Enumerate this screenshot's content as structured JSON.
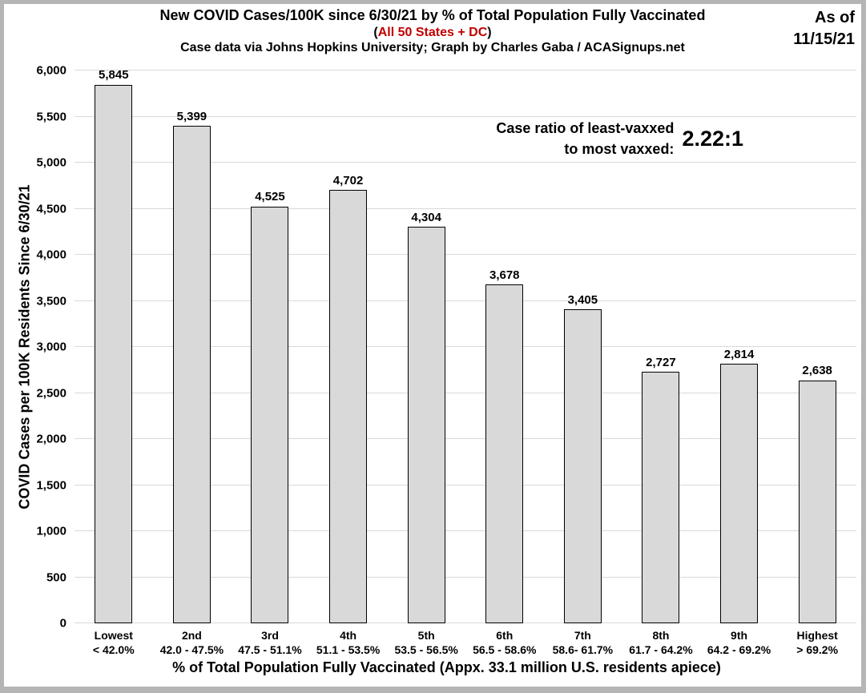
{
  "header": {
    "title": "New COVID Cases/100K since 6/30/21 by % of Total Population Fully Vaccinated",
    "subtitle_paren_open": "(",
    "subtitle_red": "All 50 States + DC",
    "subtitle_paren_close": ")",
    "credit": "Case data via Johns Hopkins University; Graph by Charles Gaba / ACASignups.net",
    "as_of_line1": "As of",
    "as_of_line2": "11/15/21"
  },
  "annotation": {
    "line1": "Case ratio of least-vaxxed",
    "line2": "to most vaxxed:",
    "ratio": "2.22:1"
  },
  "chart_data": {
    "type": "bar",
    "title": "New COVID Cases/100K since 6/30/21 by % of Total Population Fully Vaccinated (All 50 States + DC)",
    "xlabel": "% of Total Population Fully Vaccinated (Appx. 33.1 million U.S. residents apiece)",
    "ylabel": "COVID Cases per 100K Residents Since 6/30/21",
    "ylim": [
      0,
      6000
    ],
    "ytick_step": 500,
    "ytick_labels": [
      "0",
      "500",
      "1,000",
      "1,500",
      "2,000",
      "2,500",
      "3,000",
      "3,500",
      "4,000",
      "4,500",
      "5,000",
      "5,500",
      "6,000"
    ],
    "grid": true,
    "legend": false,
    "categories": [
      {
        "rank": "Lowest",
        "range": "< 42.0%"
      },
      {
        "rank": "2nd",
        "range": "42.0 - 47.5%"
      },
      {
        "rank": "3rd",
        "range": "47.5 - 51.1%"
      },
      {
        "rank": "4th",
        "range": "51.1 - 53.5%"
      },
      {
        "rank": "5th",
        "range": "53.5 - 56.5%"
      },
      {
        "rank": "6th",
        "range": "56.5 - 58.6%"
      },
      {
        "rank": "7th",
        "range": "58.6- 61.7%"
      },
      {
        "rank": "8th",
        "range": "61.7 - 64.2%"
      },
      {
        "rank": "9th",
        "range": "64.2 - 69.2%"
      },
      {
        "rank": "Highest",
        "range": "> 69.2%"
      }
    ],
    "values": [
      5845,
      5399,
      4525,
      4702,
      4304,
      3678,
      3405,
      2727,
      2814,
      2638
    ],
    "value_labels": [
      "5,845",
      "5,399",
      "4,525",
      "4,702",
      "4,304",
      "3,678",
      "3,405",
      "2,727",
      "2,814",
      "2,638"
    ],
    "colors": {
      "bar_fill": "#d9d9d9",
      "bar_border": "#000000",
      "gridline": "#d9d9d9",
      "accent_red": "#c00000",
      "frame_border": "#b5b5b5"
    }
  }
}
